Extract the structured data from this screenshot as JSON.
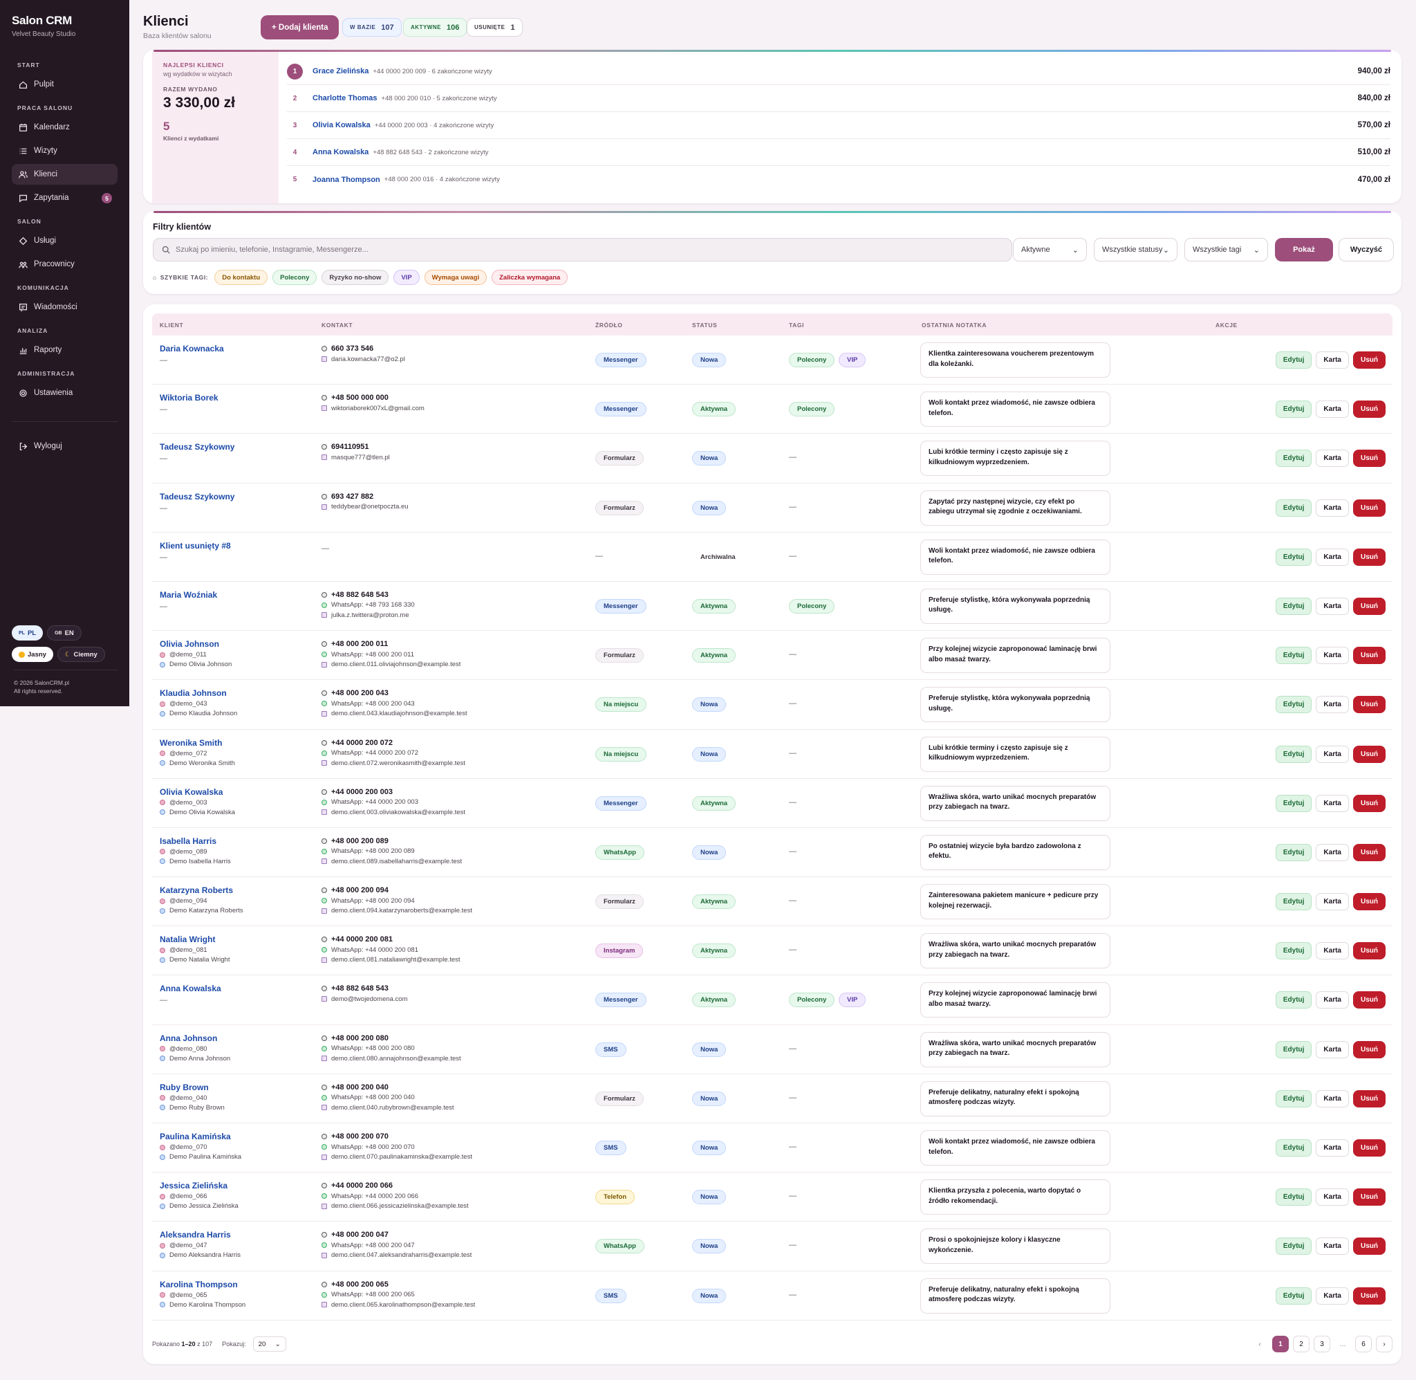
{
  "app": {
    "title": "Salon CRM",
    "subtitle": "Velvet Beauty Studio"
  },
  "sidebar": {
    "sections": [
      {
        "label": "START",
        "items": [
          {
            "label": "Pulpit",
            "icon": "home-icon"
          }
        ]
      },
      {
        "label": "PRACA SALONU",
        "items": [
          {
            "label": "Kalendarz",
            "icon": "calendar-icon"
          },
          {
            "label": "Wizyty",
            "icon": "list-icon"
          },
          {
            "label": "Klienci",
            "icon": "users-icon",
            "active": true
          },
          {
            "label": "Zapytania",
            "icon": "chat-icon",
            "badge": "5"
          }
        ]
      },
      {
        "label": "SALON",
        "items": [
          {
            "label": "Usługi",
            "icon": "tag-icon"
          },
          {
            "label": "Pracownicy",
            "icon": "team-icon"
          }
        ]
      },
      {
        "label": "KOMUNIKACJA",
        "items": [
          {
            "label": "Wiadomości",
            "icon": "message-icon"
          }
        ]
      },
      {
        "label": "ANALIZA",
        "items": [
          {
            "label": "Raporty",
            "icon": "chart-icon"
          }
        ]
      },
      {
        "label": "ADMINISTRACJA",
        "items": [
          {
            "label": "Ustawienia",
            "icon": "gear-icon"
          }
        ]
      }
    ],
    "logout": "Wyloguj",
    "lang": {
      "pl": "PL",
      "en": "EN",
      "pl_flag": "PL",
      "en_flag": "GB"
    },
    "theme": {
      "light": "Jasny",
      "dark": "Ciemny"
    },
    "copyright_line1": "© 2026 SalonCRM.pl",
    "copyright_line2": "All rights reserved."
  },
  "header": {
    "title": "Klienci",
    "subtitle": "Baza klientów salonu",
    "add_button": "+ Dodaj klienta"
  },
  "stats": [
    {
      "label": "W BAZIE",
      "value": "107"
    },
    {
      "label": "AKTYWNE",
      "value": "106"
    },
    {
      "label": "USUNIĘTE",
      "value": "1"
    }
  ],
  "best": {
    "label": "NAJLEPSI KLIENCI",
    "sub": "wg wydatków w wizytach",
    "total_label": "RAZEM WYDANO",
    "total": "3 330,00 zł",
    "count": "5",
    "count_label": "Klienci z wydatkami",
    "rows": [
      {
        "rank": "1",
        "name": "Grace Zielińska",
        "meta": "+44 0000 200 009 · 6 zakończone wizyty",
        "amount": "940,00 zł"
      },
      {
        "rank": "2",
        "name": "Charlotte Thomas",
        "meta": "+48 000 200 010 · 5 zakończone wizyty",
        "amount": "840,00 zł"
      },
      {
        "rank": "3",
        "name": "Olivia Kowalska",
        "meta": "+44 0000 200 003 · 4 zakończone wizyty",
        "amount": "570,00 zł"
      },
      {
        "rank": "4",
        "name": "Anna Kowalska",
        "meta": "+48 882 648 543 · 2 zakończone wizyty",
        "amount": "510,00 zł"
      },
      {
        "rank": "5",
        "name": "Joanna Thompson",
        "meta": "+48 000 200 016 · 4 zakończone wizyty",
        "amount": "470,00 zł"
      }
    ]
  },
  "filters": {
    "title": "Filtry klientów",
    "search_placeholder": "Szukaj po imieniu, telefonie, Instagramie, Messengerze...",
    "select_active": "Aktywne",
    "select_status": "Wszystkie statusy",
    "select_tags": "Wszystkie tagi",
    "show": "Pokaż",
    "clear": "Wyczyść",
    "quick_label": "SZYBKIE TAGI:",
    "quick_tags": [
      "Do kontaktu",
      "Polecony",
      "Ryzyko no-show",
      "VIP",
      "Wymaga uwagi",
      "Zaliczka wymagana"
    ]
  },
  "table": {
    "headers": {
      "client": "KLIENT",
      "contact": "KONTAKT",
      "source": "ŹRÓDŁO",
      "status": "STATUS",
      "tags": "TAGI",
      "note": "OSTATNIA NOTATKA",
      "actions": "AKCJE"
    },
    "edit": "Edytuj",
    "card": "Karta",
    "delete": "Usuń",
    "dash": "—",
    "rows": [
      {
        "name": "Daria Kownacka",
        "ig": "",
        "fb": "",
        "phone": "660 373 546",
        "wa": "",
        "email": "daria.kownacka77@o2.pl",
        "source": "Messenger",
        "status": "Nowa",
        "tags": [
          "Polecony",
          "VIP"
        ],
        "note": "Klientka zainteresowana voucherem prezentowym dla koleżanki."
      },
      {
        "name": "Wiktoria Borek",
        "ig": "",
        "fb": "",
        "phone": "+48 500 000 000",
        "wa": "",
        "email": "wiktoriaborek007xL@gmail.com",
        "source": "Messenger",
        "status": "Aktywna",
        "tags": [
          "Polecony"
        ],
        "note": "Woli kontakt przez wiadomość, nie zawsze odbiera telefon."
      },
      {
        "name": "Tadeusz Szykowny",
        "ig": "",
        "fb": "",
        "phone": "694110951",
        "wa": "",
        "email": "masque777@tlen.pl",
        "source": "Formularz",
        "status": "Nowa",
        "tags": [],
        "note": "Lubi krótkie terminy i często zapisuje się z kilkudniowym wyprzedzeniem."
      },
      {
        "name": "Tadeusz Szykowny",
        "ig": "",
        "fb": "",
        "phone": "693 427 882",
        "wa": "",
        "email": "teddybear@onetpoczta.eu",
        "source": "Formularz",
        "status": "Nowa",
        "tags": [],
        "note": "Zapytać przy następnej wizycie, czy efekt po zabiegu utrzymał się zgodnie z oczekiwaniami."
      },
      {
        "name": "Klient usunięty #8",
        "ig": "",
        "fb": "",
        "phone": "",
        "wa": "",
        "email": "",
        "source": "",
        "status": "Archiwalna",
        "tags": [],
        "note": "Woli kontakt przez wiadomość, nie zawsze odbiera telefon."
      },
      {
        "name": "Maria Woźniak",
        "ig": "",
        "fb": "",
        "phone": "+48 882 648 543",
        "wa": "WhatsApp: +48 793 168 330",
        "email": "julka.z.twittera@proton.me",
        "source": "Messenger",
        "status": "Aktywna",
        "tags": [
          "Polecony"
        ],
        "note": "Preferuje stylistkę, która wykonywała poprzednią usługę."
      },
      {
        "name": "Olivia Johnson",
        "ig": "@demo_011",
        "fb": "Demo Olivia Johnson",
        "phone": "+48 000 200 011",
        "wa": "WhatsApp: +48 000 200 011",
        "email": "demo.client.011.oliviajohnson@example.test",
        "source": "Formularz",
        "status": "Aktywna",
        "tags": [],
        "note": "Przy kolejnej wizycie zaproponować laminację brwi albo masaż twarzy."
      },
      {
        "name": "Klaudia Johnson",
        "ig": "@demo_043",
        "fb": "Demo Klaudia Johnson",
        "phone": "+48 000 200 043",
        "wa": "WhatsApp: +48 000 200 043",
        "email": "demo.client.043.klaudiajohnson@example.test",
        "source": "Na miejscu",
        "status": "Nowa",
        "tags": [],
        "note": "Preferuje stylistkę, która wykonywała poprzednią usługę."
      },
      {
        "name": "Weronika Smith",
        "ig": "@demo_072",
        "fb": "Demo Weronika Smith",
        "phone": "+44 0000 200 072",
        "wa": "WhatsApp: +44 0000 200 072",
        "email": "demo.client.072.weronikasmith@example.test",
        "source": "Na miejscu",
        "status": "Nowa",
        "tags": [],
        "note": "Lubi krótkie terminy i często zapisuje się z kilkudniowym wyprzedzeniem."
      },
      {
        "name": "Olivia Kowalska",
        "ig": "@demo_003",
        "fb": "Demo Olivia Kowalska",
        "phone": "+44 0000 200 003",
        "wa": "WhatsApp: +44 0000 200 003",
        "email": "demo.client.003.oliviakowalska@example.test",
        "source": "Messenger",
        "status": "Aktywna",
        "tags": [],
        "note": "Wrażliwa skóra, warto unikać mocnych preparatów przy zabiegach na twarz."
      },
      {
        "name": "Isabella Harris",
        "ig": "@demo_089",
        "fb": "Demo Isabella Harris",
        "phone": "+48 000 200 089",
        "wa": "WhatsApp: +48 000 200 089",
        "email": "demo.client.089.isabellaharris@example.test",
        "source": "WhatsApp",
        "status": "Nowa",
        "tags": [],
        "note": "Po ostatniej wizycie była bardzo zadowolona z efektu."
      },
      {
        "name": "Katarzyna Roberts",
        "ig": "@demo_094",
        "fb": "Demo Katarzyna Roberts",
        "phone": "+48 000 200 094",
        "wa": "WhatsApp: +48 000 200 094",
        "email": "demo.client.094.katarzynaroberts@example.test",
        "source": "Formularz",
        "status": "Aktywna",
        "tags": [],
        "note": "Zainteresowana pakietem manicure + pedicure przy kolejnej rezerwacji."
      },
      {
        "name": "Natalia Wright",
        "ig": "@demo_081",
        "fb": "Demo Natalia Wright",
        "phone": "+44 0000 200 081",
        "wa": "WhatsApp: +44 0000 200 081",
        "email": "demo.client.081.nataliawright@example.test",
        "source": "Instagram",
        "status": "Aktywna",
        "tags": [],
        "note": "Wrażliwa skóra, warto unikać mocnych preparatów przy zabiegach na twarz."
      },
      {
        "name": "Anna Kowalska",
        "ig": "",
        "fb": "",
        "phone": "+48 882 648 543",
        "wa": "",
        "email": "demo@twojedomena.com",
        "source": "Messenger",
        "status": "Aktywna",
        "tags": [
          "Polecony",
          "VIP"
        ],
        "note": "Przy kolejnej wizycie zaproponować laminację brwi albo masaż twarzy."
      },
      {
        "name": "Anna Johnson",
        "ig": "@demo_080",
        "fb": "Demo Anna Johnson",
        "phone": "+48 000 200 080",
        "wa": "WhatsApp: +48 000 200 080",
        "email": "demo.client.080.annajohnson@example.test",
        "source": "SMS",
        "status": "Nowa",
        "tags": [],
        "note": "Wrażliwa skóra, warto unikać mocnych preparatów przy zabiegach na twarz."
      },
      {
        "name": "Ruby Brown",
        "ig": "@demo_040",
        "fb": "Demo Ruby Brown",
        "phone": "+48 000 200 040",
        "wa": "WhatsApp: +48 000 200 040",
        "email": "demo.client.040.rubybrown@example.test",
        "source": "Formularz",
        "status": "Nowa",
        "tags": [],
        "note": "Preferuje delikatny, naturalny efekt i spokojną atmosferę podczas wizyty."
      },
      {
        "name": "Paulina Kamińska",
        "ig": "@demo_070",
        "fb": "Demo Paulina Kamińska",
        "phone": "+48 000 200 070",
        "wa": "WhatsApp: +48 000 200 070",
        "email": "demo.client.070.paulinakaminska@example.test",
        "source": "SMS",
        "status": "Nowa",
        "tags": [],
        "note": "Woli kontakt przez wiadomość, nie zawsze odbiera telefon."
      },
      {
        "name": "Jessica Zielińska",
        "ig": "@demo_066",
        "fb": "Demo Jessica Zielińska",
        "phone": "+44 0000 200 066",
        "wa": "WhatsApp: +44 0000 200 066",
        "email": "demo.client.066.jessicazielinska@example.test",
        "source": "Telefon",
        "status": "Nowa",
        "tags": [],
        "note": "Klientka przyszła z polecenia, warto dopytać o źródło rekomendacji."
      },
      {
        "name": "Aleksandra Harris",
        "ig": "@demo_047",
        "fb": "Demo Aleksandra Harris",
        "phone": "+48 000 200 047",
        "wa": "WhatsApp: +48 000 200 047",
        "email": "demo.client.047.aleksandraharris@example.test",
        "source": "WhatsApp",
        "status": "Nowa",
        "tags": [],
        "note": "Prosi o spokojniejsze kolory i klasyczne wykończenie."
      },
      {
        "name": "Karolina Thompson",
        "ig": "@demo_065",
        "fb": "Demo Karolina Thompson",
        "phone": "+48 000 200 065",
        "wa": "WhatsApp: +48 000 200 065",
        "email": "demo.client.065.karolinathompson@example.test",
        "source": "SMS",
        "status": "Nowa",
        "tags": [],
        "note": "Preferuje delikatny, naturalny efekt i spokojną atmosferę podczas wizyty."
      }
    ]
  },
  "pagination": {
    "shown_prefix": "Pokazano",
    "shown_range": "1–20",
    "shown_of": "z 107",
    "per_label": "Pokazuj:",
    "per_value": "20",
    "prev": "‹",
    "next": "›",
    "pages": [
      "1",
      "2",
      "3",
      "…",
      "6"
    ],
    "active": "1"
  },
  "colors": {
    "accent": "#9d4e7b",
    "sidebar": "#241923",
    "link": "#1c4aa8",
    "danger": "#bf1d2a"
  }
}
